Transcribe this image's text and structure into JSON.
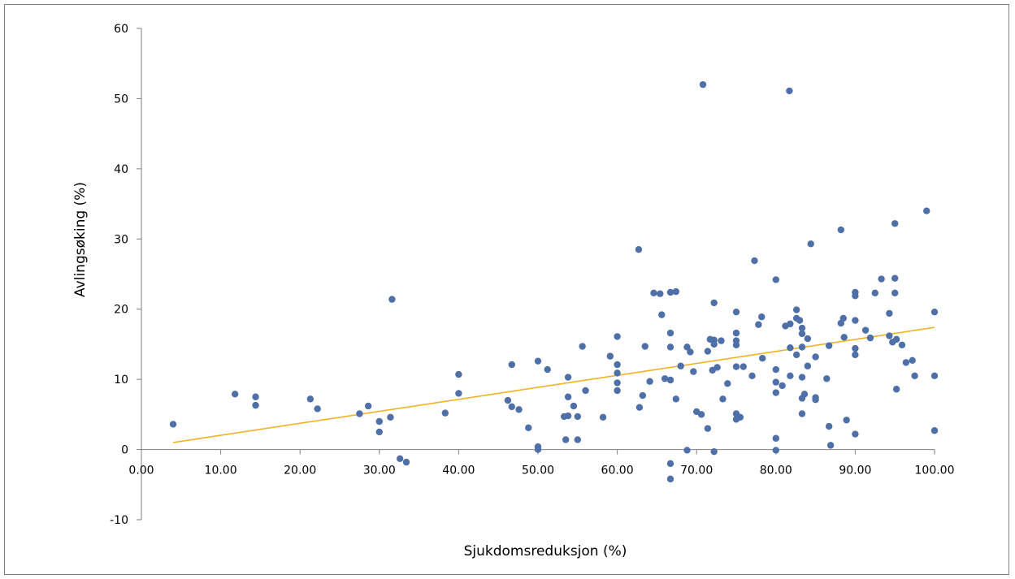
{
  "chart_data": {
    "type": "scatter",
    "xlabel": "Sjukdomsreduksjon (%)",
    "ylabel": "Avlingsøking (%)",
    "xlim": [
      0,
      100
    ],
    "ylim": [
      -10,
      60
    ],
    "x_ticks": [
      "0.00",
      "10.00",
      "20.00",
      "30.00",
      "40.00",
      "50.00",
      "60.00",
      "70.00",
      "80.00",
      "90.00",
      "100.00"
    ],
    "y_ticks": [
      "-10",
      "0",
      "10",
      "20",
      "30",
      "40",
      "50",
      "60"
    ],
    "grid": false,
    "legend": "none",
    "colors": {
      "points": "#4f6fa8",
      "trendline": "#f0b323",
      "axis": "#7f7f7f"
    },
    "trendline": {
      "x": [
        4,
        100
      ],
      "y": [
        1.0,
        17.4
      ]
    },
    "points": [
      [
        4,
        3.6
      ],
      [
        11.8,
        7.9
      ],
      [
        14.4,
        7.5
      ],
      [
        14.4,
        6.3
      ],
      [
        21.3,
        7.2
      ],
      [
        22.2,
        5.8
      ],
      [
        27.5,
        5.1
      ],
      [
        28.6,
        6.2
      ],
      [
        30,
        4.0
      ],
      [
        30,
        2.5
      ],
      [
        31.4,
        4.6
      ],
      [
        31.6,
        21.4
      ],
      [
        32.6,
        -1.3
      ],
      [
        33.4,
        -1.8
      ],
      [
        38.3,
        5.2
      ],
      [
        40,
        10.7
      ],
      [
        40,
        8.0
      ],
      [
        46.2,
        7.0
      ],
      [
        46.7,
        12.1
      ],
      [
        46.7,
        6.1
      ],
      [
        47.6,
        5.7
      ],
      [
        48.8,
        3.1
      ],
      [
        50,
        12.6
      ],
      [
        50,
        0.4
      ],
      [
        50,
        0.0
      ],
      [
        51.2,
        11.4
      ],
      [
        53.3,
        4.7
      ],
      [
        53.5,
        1.4
      ],
      [
        53.8,
        10.3
      ],
      [
        53.8,
        7.5
      ],
      [
        53.8,
        4.8
      ],
      [
        54.5,
        6.2
      ],
      [
        55,
        4.7
      ],
      [
        55,
        1.4
      ],
      [
        55.6,
        14.7
      ],
      [
        56,
        8.4
      ],
      [
        58.2,
        4.6
      ],
      [
        59.1,
        13.3
      ],
      [
        60,
        16.1
      ],
      [
        60,
        12.1
      ],
      [
        60,
        10.9
      ],
      [
        60,
        9.5
      ],
      [
        60,
        8.4
      ],
      [
        62.7,
        28.5
      ],
      [
        62.8,
        6.0
      ],
      [
        63.2,
        7.7
      ],
      [
        63.5,
        14.7
      ],
      [
        64.1,
        9.7
      ],
      [
        64.6,
        22.3
      ],
      [
        65.4,
        22.2
      ],
      [
        65.6,
        19.2
      ],
      [
        66,
        10.1
      ],
      [
        66.7,
        22.4
      ],
      [
        66.7,
        16.6
      ],
      [
        66.7,
        14.6
      ],
      [
        66.7,
        9.9
      ],
      [
        66.7,
        -2.0
      ],
      [
        66.7,
        -4.2
      ],
      [
        67.4,
        22.5
      ],
      [
        67.4,
        7.2
      ],
      [
        68,
        11.9
      ],
      [
        68.8,
        14.6
      ],
      [
        68.8,
        -0.1
      ],
      [
        69.2,
        13.9
      ],
      [
        69.6,
        11.1
      ],
      [
        70,
        5.4
      ],
      [
        70.6,
        5.0
      ],
      [
        70.8,
        52.0
      ],
      [
        71.4,
        3.0
      ],
      [
        71.4,
        14.0
      ],
      [
        71.7,
        15.7
      ],
      [
        72,
        11.3
      ],
      [
        72.2,
        20.9
      ],
      [
        72.2,
        15.6
      ],
      [
        72.2,
        15.0
      ],
      [
        72.2,
        -0.3
      ],
      [
        72.6,
        11.7
      ],
      [
        73.1,
        15.5
      ],
      [
        73.3,
        7.2
      ],
      [
        73.9,
        9.4
      ],
      [
        75,
        19.6
      ],
      [
        75,
        16.6
      ],
      [
        75,
        15.5
      ],
      [
        75,
        14.9
      ],
      [
        75,
        11.8
      ],
      [
        75,
        5.1
      ],
      [
        75,
        4.3
      ],
      [
        75.5,
        4.6
      ],
      [
        75.9,
        11.8
      ],
      [
        77,
        10.5
      ],
      [
        77.3,
        26.9
      ],
      [
        77.8,
        17.8
      ],
      [
        78.2,
        18.9
      ],
      [
        78.3,
        13.0
      ],
      [
        80,
        24.2
      ],
      [
        80,
        11.4
      ],
      [
        80,
        9.6
      ],
      [
        80,
        8.1
      ],
      [
        80,
        1.6
      ],
      [
        80,
        -0.1
      ],
      [
        80.8,
        9.1
      ],
      [
        81.2,
        17.6
      ],
      [
        81.7,
        51.1
      ],
      [
        81.8,
        17.9
      ],
      [
        81.8,
        14.5
      ],
      [
        81.8,
        10.5
      ],
      [
        82.6,
        19.9
      ],
      [
        82.6,
        18.7
      ],
      [
        82.6,
        13.5
      ],
      [
        83,
        18.4
      ],
      [
        83.3,
        17.3
      ],
      [
        83.3,
        16.5
      ],
      [
        83.3,
        14.6
      ],
      [
        83.3,
        10.3
      ],
      [
        83.3,
        7.3
      ],
      [
        83.3,
        5.1
      ],
      [
        83.6,
        7.9
      ],
      [
        84,
        15.8
      ],
      [
        84,
        11.9
      ],
      [
        84.4,
        29.3
      ],
      [
        85,
        13.2
      ],
      [
        85,
        7.4
      ],
      [
        85,
        7.1
      ],
      [
        86.4,
        10.1
      ],
      [
        86.7,
        14.8
      ],
      [
        86.7,
        3.3
      ],
      [
        86.9,
        0.6
      ],
      [
        88.2,
        31.3
      ],
      [
        88.2,
        18.0
      ],
      [
        88.5,
        18.7
      ],
      [
        88.6,
        16.0
      ],
      [
        88.9,
        4.2
      ],
      [
        90,
        22.4
      ],
      [
        90,
        21.9
      ],
      [
        90,
        18.4
      ],
      [
        90,
        14.4
      ],
      [
        90,
        13.5
      ],
      [
        90,
        2.2
      ],
      [
        91.3,
        17.0
      ],
      [
        91.9,
        15.9
      ],
      [
        92.5,
        22.3
      ],
      [
        93.3,
        24.3
      ],
      [
        94.3,
        19.4
      ],
      [
        94.3,
        16.2
      ],
      [
        94.7,
        15.3
      ],
      [
        95,
        32.2
      ],
      [
        95,
        24.4
      ],
      [
        95,
        22.3
      ],
      [
        95.2,
        15.7
      ],
      [
        95.2,
        8.6
      ],
      [
        95.9,
        14.9
      ],
      [
        96.4,
        12.4
      ],
      [
        97.2,
        12.7
      ],
      [
        97.5,
        10.5
      ],
      [
        99,
        34.0
      ],
      [
        100,
        19.6
      ],
      [
        100,
        10.5
      ],
      [
        100,
        2.7
      ]
    ]
  }
}
